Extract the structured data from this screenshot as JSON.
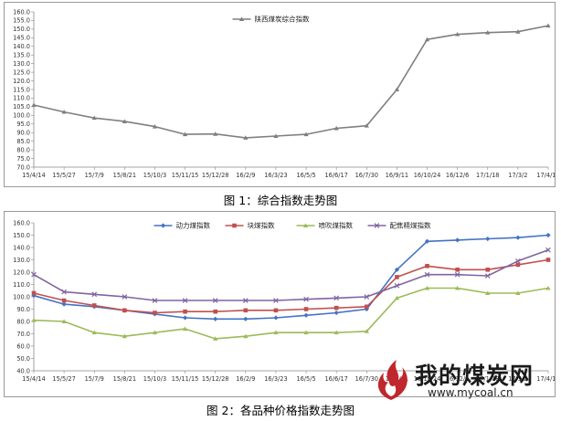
{
  "captions": {
    "fig1": "图 1：综合指数走势图",
    "fig2": "图 2：各品种价格指数走势图"
  },
  "watermark": {
    "title": "我的煤炭网",
    "url": "www.mycoal.cn"
  },
  "chart_data": [
    {
      "type": "line",
      "title": "",
      "x_labels": [
        "15/4/14",
        "15/5/27",
        "15/7/9",
        "15/8/21",
        "15/10/3",
        "15/11/15",
        "15/12/28",
        "16/2/9",
        "16/3/23",
        "16/5/5",
        "16/6/17",
        "16/7/30",
        "16/9/11",
        "16/10/24",
        "16/12/6",
        "17/1/18",
        "17/3/2",
        "17/4/14"
      ],
      "ylim": [
        70,
        160
      ],
      "y_ticks": [
        "70.0",
        "75.0",
        "80.0",
        "85.0",
        "90.0",
        "95.0",
        "100.0",
        "105.0",
        "110.0",
        "115.0",
        "120.0",
        "125.0",
        "130.0",
        "135.0",
        "140.0",
        "145.0",
        "150.0",
        "155.0",
        "160.0"
      ],
      "grid": "none",
      "legend": "top-center",
      "colors": {
        "series": "#7f7f7f"
      },
      "series": [
        {
          "name": "陕西煤炭综合指数",
          "values": [
            106.0,
            102.0,
            98.5,
            96.5,
            93.5,
            89.0,
            89.2,
            87.0,
            88.0,
            89.0,
            92.5,
            94.0,
            115.0,
            144.0,
            147.0,
            148.0,
            148.5,
            152.0
          ]
        }
      ]
    },
    {
      "type": "line",
      "title": "",
      "x_labels": [
        "15/4/14",
        "15/5/27",
        "15/7/9",
        "15/8/21",
        "15/10/3",
        "15/11/15",
        "15/12/28",
        "16/2/9",
        "16/3/23",
        "16/5/5",
        "16/6/17",
        "16/7/30",
        "16/9/11",
        "16/10/24",
        "16/12/6",
        "17/1/18",
        "17/3/2",
        "17/4/14"
      ],
      "ylim": [
        40,
        160
      ],
      "y_ticks": [
        "40.0",
        "50.0",
        "60.0",
        "70.0",
        "80.0",
        "90.0",
        "100.0",
        "110.0",
        "120.0",
        "130.0",
        "140.0",
        "150.0",
        "160.0"
      ],
      "grid": "none",
      "legend": "top-center",
      "colors": {
        "动力煤指数": "#4472c4",
        "块煤指数": "#c0504d",
        "喷吹煤指数": "#9bbb59",
        "配焦精煤指数": "#8064a2"
      },
      "series": [
        {
          "name": "动力煤指数",
          "values": [
            101,
            94,
            92,
            89,
            86,
            83,
            82,
            82,
            83,
            85,
            87,
            90,
            122,
            145,
            146,
            147,
            148,
            150
          ]
        },
        {
          "name": "块煤指数",
          "values": [
            103,
            97,
            93,
            89,
            87,
            88,
            88,
            89,
            89,
            90,
            91,
            92,
            116,
            125,
            122,
            122,
            126,
            130
          ]
        },
        {
          "name": "喷吹煤指数",
          "values": [
            81,
            80,
            71,
            68,
            71,
            74,
            66,
            68,
            71,
            71,
            71,
            72,
            99,
            107,
            107,
            103,
            103,
            107
          ]
        },
        {
          "name": "配焦精煤指数",
          "values": [
            118,
            104,
            102,
            100,
            97,
            97,
            97,
            97,
            97,
            98,
            99,
            100,
            109,
            118,
            118,
            117,
            129,
            138
          ]
        }
      ]
    }
  ]
}
